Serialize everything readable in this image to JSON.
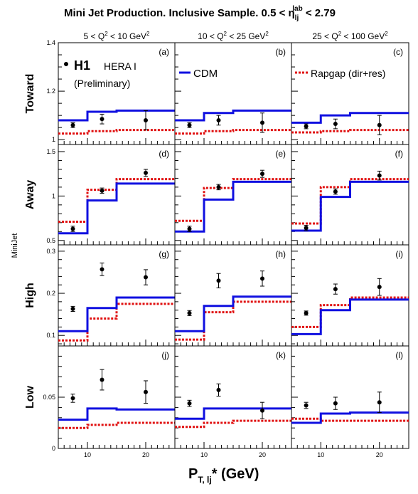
{
  "title": "Mini Jet Production.  Inclusive Sample.  0.5 < η_lj^lab < 2.79",
  "title_parts": {
    "main": "Mini Jet Production.  Inclusive Sample.  0.5 < η",
    "sub": "lj",
    "sup": "lab",
    "tail": " < 2.79"
  },
  "column_headers": [
    {
      "pre": "5 < Q",
      "sup": "2",
      "post": " < 10 GeV",
      "sup2": "2"
    },
    {
      "pre": "10 < Q",
      "sup": "2",
      "post": " < 25 GeV",
      "sup2": "2"
    },
    {
      "pre": "25 < Q",
      "sup": "2",
      "post": " < 100 GeV",
      "sup2": "2"
    }
  ],
  "row_labels": [
    "Toward",
    "Away",
    "High",
    "Low"
  ],
  "y_axis_label": "MiniJet",
  "x_axis_label": {
    "main": "P",
    "sub": "T, lj",
    "tail": "* (GeV)"
  },
  "legend": {
    "data_marker": "H1",
    "data_note1": "HERA I",
    "data_note2": "(Preliminary)",
    "cdm": "CDM",
    "rapgap": "Rapgap (dir+res)"
  },
  "colors": {
    "cdm": "#1010e0",
    "rapgap": "#e01010",
    "data": "#000000"
  },
  "chart_data": {
    "type": "step+scatter",
    "x_bins": [
      [
        5,
        10
      ],
      [
        10,
        15
      ],
      [
        15,
        25
      ]
    ],
    "x_points": [
      7.5,
      12.5,
      20
    ],
    "xlim": [
      5,
      25
    ],
    "xticks": [
      10,
      20
    ],
    "rows": [
      {
        "name": "Toward",
        "ylim": [
          0.98,
          1.4
        ],
        "yticks": [
          1,
          1.2,
          1.4
        ],
        "ytick_labels": [
          "1",
          "1.2",
          "1.4"
        ],
        "minor": 0.05,
        "panels": [
          {
            "tag": "(a)",
            "data": [
              1.06,
              1.085,
              1.08
            ],
            "err": [
              0.01,
              0.02,
              0.04
            ],
            "cdm": [
              1.08,
              1.115,
              1.12
            ],
            "rapgap": [
              1.025,
              1.035,
              1.04
            ]
          },
          {
            "tag": "(b)",
            "data": [
              1.06,
              1.08,
              1.07
            ],
            "err": [
              0.01,
              0.02,
              0.04
            ],
            "cdm": [
              1.08,
              1.11,
              1.12
            ],
            "rapgap": [
              1.025,
              1.035,
              1.04
            ]
          },
          {
            "tag": "(c)",
            "data": [
              1.055,
              1.065,
              1.06
            ],
            "err": [
              0.01,
              0.02,
              0.04
            ],
            "cdm": [
              1.07,
              1.1,
              1.11
            ],
            "rapgap": [
              1.03,
              1.035,
              1.04
            ]
          }
        ]
      },
      {
        "name": "Away",
        "ylim": [
          0.45,
          1.58
        ],
        "yticks": [
          0.5,
          1,
          1.5
        ],
        "ytick_labels": [
          "0.5",
          "1",
          "1.5"
        ],
        "minor": 0.1,
        "panels": [
          {
            "tag": "(d)",
            "data": [
              0.63,
              1.06,
              1.26
            ],
            "err": [
              0.03,
              0.03,
              0.04
            ],
            "cdm": [
              0.58,
              0.95,
              1.14
            ],
            "rapgap": [
              0.71,
              1.07,
              1.19
            ]
          },
          {
            "tag": "(e)",
            "data": [
              0.63,
              1.1,
              1.25
            ],
            "err": [
              0.03,
              0.03,
              0.04
            ],
            "cdm": [
              0.6,
              0.96,
              1.16
            ],
            "rapgap": [
              0.72,
              1.09,
              1.19
            ]
          },
          {
            "tag": "(f)",
            "data": [
              0.64,
              1.05,
              1.23
            ],
            "err": [
              0.03,
              0.03,
              0.05
            ],
            "cdm": [
              0.61,
              0.99,
              1.16
            ],
            "rapgap": [
              0.69,
              1.1,
              1.19
            ]
          }
        ]
      },
      {
        "name": "High",
        "ylim": [
          0.075,
          0.315
        ],
        "yticks": [
          0.1,
          0.2,
          0.3
        ],
        "ytick_labels": [
          "0.1",
          "0.2",
          "0.3"
        ],
        "minor": 0.02,
        "panels": [
          {
            "tag": "(g)",
            "data": [
              0.163,
              0.257,
              0.238
            ],
            "err": [
              0.006,
              0.015,
              0.018
            ],
            "cdm": [
              0.11,
              0.165,
              0.19
            ],
            "rapgap": [
              0.088,
              0.14,
              0.175
            ]
          },
          {
            "tag": "(h)",
            "data": [
              0.153,
              0.23,
              0.235
            ],
            "err": [
              0.006,
              0.017,
              0.018
            ],
            "cdm": [
              0.11,
              0.17,
              0.192
            ],
            "rapgap": [
              0.09,
              0.155,
              0.18
            ]
          },
          {
            "tag": "(i)",
            "data": [
              0.153,
              0.21,
              0.215
            ],
            "err": [
              0.005,
              0.012,
              0.02
            ],
            "cdm": [
              0.103,
              0.16,
              0.185
            ],
            "rapgap": [
              0.12,
              0.172,
              0.19
            ]
          }
        ]
      },
      {
        "name": "Low",
        "ylim": [
          0,
          0.1
        ],
        "yticks": [
          0,
          0.05
        ],
        "ytick_labels": [
          "0",
          "0.05"
        ],
        "minor": 0.01,
        "panels": [
          {
            "tag": "(j)",
            "data": [
              0.049,
              0.067,
              0.055
            ],
            "err": [
              0.004,
              0.01,
              0.011
            ],
            "cdm": [
              0.028,
              0.039,
              0.038
            ],
            "rapgap": [
              0.02,
              0.023,
              0.025
            ]
          },
          {
            "tag": "(k)",
            "data": [
              0.044,
              0.057,
              0.037
            ],
            "err": [
              0.003,
              0.006,
              0.008
            ],
            "cdm": [
              0.029,
              0.039,
              0.039
            ],
            "rapgap": [
              0.021,
              0.025,
              0.027
            ]
          },
          {
            "tag": "(l)",
            "data": [
              0.042,
              0.044,
              0.045
            ],
            "err": [
              0.003,
              0.006,
              0.01
            ],
            "cdm": [
              0.025,
              0.034,
              0.035
            ],
            "rapgap": [
              0.029,
              0.027,
              0.027
            ]
          }
        ]
      }
    ]
  }
}
